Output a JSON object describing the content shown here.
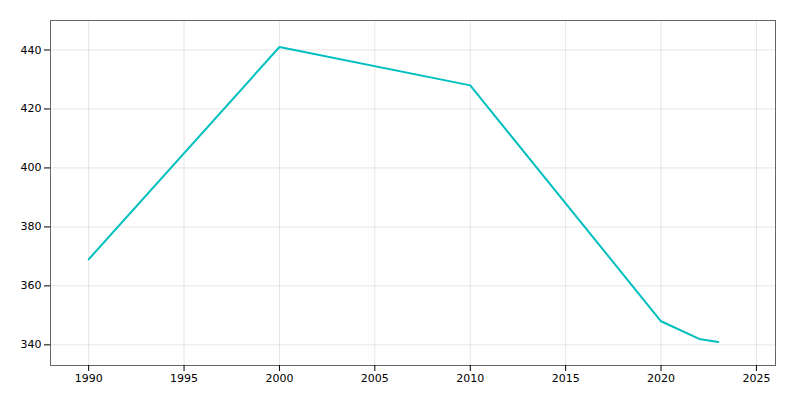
{
  "chart_data": {
    "type": "line",
    "x": [
      1990,
      2000,
      2010,
      2020,
      2022,
      2023
    ],
    "values": [
      369,
      441,
      428,
      348,
      342,
      341
    ],
    "color": "#00BFBF",
    "xlim": [
      1988,
      2026
    ],
    "ylim": [
      333,
      450
    ],
    "xticks": [
      1990,
      1995,
      2000,
      2005,
      2010,
      2015,
      2020,
      2025
    ],
    "yticks": [
      340,
      360,
      380,
      400,
      420,
      440
    ],
    "grid": true
  }
}
